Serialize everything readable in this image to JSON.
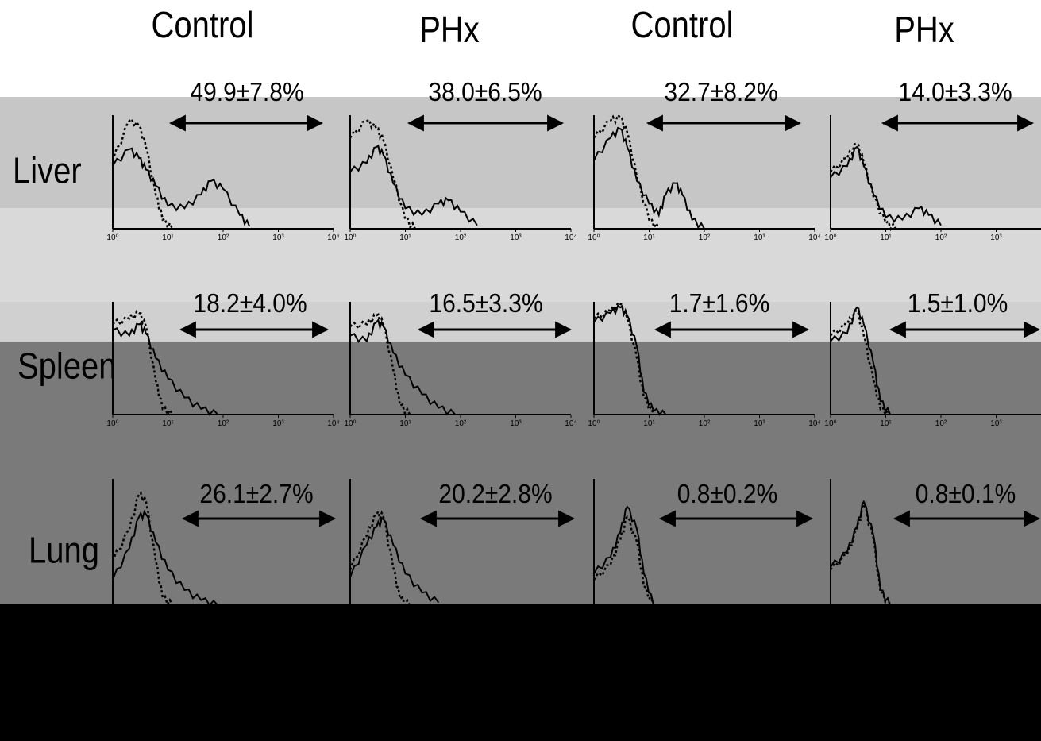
{
  "column_titles": [
    "Control",
    "PHx",
    "Control",
    "PHx"
  ],
  "row_labels": [
    "Liver",
    "Spleen",
    "Lung"
  ],
  "percentages": [
    [
      "49.9±7.8%",
      "38.0±6.5%",
      "32.7±8.2%",
      "14.0±3.3%"
    ],
    [
      "18.2±4.0%",
      "16.5±3.3%",
      "1.7±1.6%",
      "1.5±1.0%"
    ],
    [
      "26.1±2.7%",
      "20.2±2.8%",
      "0.8±0.2%",
      "0.8±0.1%"
    ]
  ],
  "axis_tick_labels": [
    "10⁰",
    "10¹",
    "10²",
    "10³",
    "10⁴"
  ],
  "colors": {
    "band_light": "#c6c6c6",
    "band_lighter": "#d9d9d9",
    "band_mid": "#7a7a7a",
    "band_dark": "#000000",
    "trace": "#000000"
  },
  "chart_data": {
    "type": "histogram_grid",
    "x_scale": "log",
    "xlim": [
      1,
      10000
    ],
    "x_ticks": [
      1,
      10,
      100,
      1000,
      10000
    ],
    "columns": [
      "Control",
      "PHx",
      "Control",
      "PHx"
    ],
    "rows": [
      "Liver",
      "Spleen",
      "Lung"
    ],
    "line_styles": [
      "solid",
      "dotted"
    ],
    "positive_fraction_percent": [
      [
        {
          "mean": 49.9,
          "sd": 7.8
        },
        {
          "mean": 38.0,
          "sd": 6.5
        },
        {
          "mean": 32.7,
          "sd": 8.2
        },
        {
          "mean": 14.0,
          "sd": 3.3
        }
      ],
      [
        {
          "mean": 18.2,
          "sd": 4.0
        },
        {
          "mean": 16.5,
          "sd": 3.3
        },
        {
          "mean": 1.7,
          "sd": 1.6
        },
        {
          "mean": 1.5,
          "sd": 1.0
        }
      ],
      [
        {
          "mean": 26.1,
          "sd": 2.7
        },
        {
          "mean": 20.2,
          "sd": 2.8
        },
        {
          "mean": 0.8,
          "sd": 0.2
        },
        {
          "mean": 0.8,
          "sd": 0.1
        }
      ]
    ],
    "histograms": [
      [
        {
          "solid": [
            [
              1,
              0.55
            ],
            [
              2,
              0.7
            ],
            [
              3,
              0.62
            ],
            [
              4,
              0.52
            ],
            [
              6,
              0.38
            ],
            [
              10,
              0.2
            ],
            [
              20,
              0.18
            ],
            [
              40,
              0.3
            ],
            [
              60,
              0.42
            ],
            [
              100,
              0.35
            ],
            [
              200,
              0.12
            ],
            [
              300,
              0.02
            ]
          ],
          "dotted": [
            [
              1,
              0.6
            ],
            [
              2,
              0.95
            ],
            [
              3,
              0.9
            ],
            [
              4,
              0.72
            ],
            [
              6,
              0.3
            ],
            [
              8,
              0.08
            ],
            [
              12,
              0.0
            ]
          ]
        },
        {
          "solid": [
            [
              1,
              0.5
            ],
            [
              2,
              0.58
            ],
            [
              3,
              0.72
            ],
            [
              4,
              0.65
            ],
            [
              6,
              0.4
            ],
            [
              10,
              0.18
            ],
            [
              20,
              0.12
            ],
            [
              40,
              0.22
            ],
            [
              60,
              0.25
            ],
            [
              100,
              0.15
            ],
            [
              200,
              0.03
            ]
          ],
          "dotted": [
            [
              1,
              0.8
            ],
            [
              2,
              0.95
            ],
            [
              3,
              0.88
            ],
            [
              4,
              0.78
            ],
            [
              6,
              0.45
            ],
            [
              10,
              0.08
            ],
            [
              15,
              0.0
            ]
          ]
        },
        {
          "solid": [
            [
              1,
              0.6
            ],
            [
              2,
              0.8
            ],
            [
              3,
              0.88
            ],
            [
              4,
              0.72
            ],
            [
              6,
              0.42
            ],
            [
              10,
              0.22
            ],
            [
              15,
              0.12
            ],
            [
              20,
              0.3
            ],
            [
              30,
              0.4
            ],
            [
              40,
              0.3
            ],
            [
              60,
              0.08
            ],
            [
              100,
              0.0
            ]
          ],
          "dotted": [
            [
              1,
              0.8
            ],
            [
              2,
              0.95
            ],
            [
              3,
              0.98
            ],
            [
              4,
              0.85
            ],
            [
              6,
              0.45
            ],
            [
              10,
              0.08
            ],
            [
              15,
              0.0
            ]
          ]
        },
        {
          "solid": [
            [
              1,
              0.45
            ],
            [
              2,
              0.55
            ],
            [
              3,
              0.72
            ],
            [
              4,
              0.55
            ],
            [
              6,
              0.3
            ],
            [
              10,
              0.1
            ],
            [
              20,
              0.08
            ],
            [
              40,
              0.18
            ],
            [
              60,
              0.12
            ],
            [
              100,
              0.03
            ]
          ],
          "dotted": [
            [
              1,
              0.5
            ],
            [
              2,
              0.62
            ],
            [
              3,
              0.75
            ],
            [
              4,
              0.58
            ],
            [
              6,
              0.28
            ],
            [
              10,
              0.05
            ],
            [
              15,
              0.0
            ]
          ]
        }
      ],
      [
        {
          "solid": [
            [
              1,
              0.75
            ],
            [
              2,
              0.7
            ],
            [
              3,
              0.8
            ],
            [
              4,
              0.72
            ],
            [
              6,
              0.5
            ],
            [
              10,
              0.32
            ],
            [
              20,
              0.15
            ],
            [
              40,
              0.05
            ],
            [
              80,
              0.0
            ]
          ],
          "dotted": [
            [
              1,
              0.8
            ],
            [
              2,
              0.85
            ],
            [
              3,
              0.9
            ],
            [
              4,
              0.78
            ],
            [
              6,
              0.3
            ],
            [
              8,
              0.05
            ],
            [
              12,
              0.0
            ]
          ]
        },
        {
          "solid": [
            [
              1,
              0.7
            ],
            [
              2,
              0.65
            ],
            [
              3,
              0.82
            ],
            [
              4,
              0.78
            ],
            [
              6,
              0.55
            ],
            [
              10,
              0.35
            ],
            [
              20,
              0.18
            ],
            [
              40,
              0.06
            ],
            [
              80,
              0.0
            ]
          ],
          "dotted": [
            [
              1,
              0.78
            ],
            [
              2,
              0.8
            ],
            [
              3,
              0.88
            ],
            [
              4,
              0.8
            ],
            [
              6,
              0.4
            ],
            [
              8,
              0.08
            ],
            [
              12,
              0.0
            ]
          ]
        },
        {
          "solid": [
            [
              1,
              0.82
            ],
            [
              2,
              0.9
            ],
            [
              3,
              0.95
            ],
            [
              4,
              0.88
            ],
            [
              6,
              0.6
            ],
            [
              8,
              0.2
            ],
            [
              12,
              0.03
            ],
            [
              20,
              0.0
            ]
          ],
          "dotted": [
            [
              1,
              0.85
            ],
            [
              2,
              0.92
            ],
            [
              3,
              0.98
            ],
            [
              4,
              0.85
            ],
            [
              6,
              0.5
            ],
            [
              8,
              0.15
            ],
            [
              12,
              0.0
            ]
          ]
        },
        {
          "solid": [
            [
              1,
              0.65
            ],
            [
              2,
              0.72
            ],
            [
              3,
              0.95
            ],
            [
              4,
              0.8
            ],
            [
              6,
              0.45
            ],
            [
              8,
              0.12
            ],
            [
              12,
              0.0
            ]
          ],
          "dotted": [
            [
              1,
              0.7
            ],
            [
              2,
              0.8
            ],
            [
              3,
              0.92
            ],
            [
              4,
              0.7
            ],
            [
              6,
              0.3
            ],
            [
              8,
              0.05
            ],
            [
              12,
              0.0
            ]
          ]
        }
      ],
      [
        {
          "solid": [
            [
              1,
              0.2
            ],
            [
              2,
              0.45
            ],
            [
              3,
              0.7
            ],
            [
              4,
              0.72
            ],
            [
              6,
              0.5
            ],
            [
              10,
              0.28
            ],
            [
              20,
              0.12
            ],
            [
              40,
              0.04
            ],
            [
              80,
              0.0
            ]
          ],
          "dotted": [
            [
              1,
              0.35
            ],
            [
              2,
              0.6
            ],
            [
              3,
              0.88
            ],
            [
              4,
              0.82
            ],
            [
              6,
              0.35
            ],
            [
              8,
              0.06
            ],
            [
              12,
              0.0
            ]
          ]
        },
        {
          "solid": [
            [
              1,
              0.22
            ],
            [
              2,
              0.48
            ],
            [
              3,
              0.62
            ],
            [
              4,
              0.68
            ],
            [
              6,
              0.48
            ],
            [
              10,
              0.25
            ],
            [
              20,
              0.1
            ],
            [
              40,
              0.02
            ]
          ],
          "dotted": [
            [
              1,
              0.28
            ],
            [
              2,
              0.55
            ],
            [
              3,
              0.72
            ],
            [
              4,
              0.7
            ],
            [
              6,
              0.3
            ],
            [
              8,
              0.05
            ],
            [
              12,
              0.0
            ]
          ]
        },
        {
          "solid": [
            [
              1,
              0.25
            ],
            [
              2,
              0.38
            ],
            [
              3,
              0.58
            ],
            [
              4,
              0.78
            ],
            [
              6,
              0.6
            ],
            [
              8,
              0.25
            ],
            [
              12,
              0.0
            ]
          ],
          "dotted": [
            [
              1,
              0.2
            ],
            [
              2,
              0.32
            ],
            [
              3,
              0.52
            ],
            [
              4,
              0.7
            ],
            [
              6,
              0.5
            ],
            [
              8,
              0.15
            ],
            [
              12,
              0.0
            ]
          ]
        },
        {
          "solid": [
            [
              1,
              0.3
            ],
            [
              2,
              0.42
            ],
            [
              3,
              0.62
            ],
            [
              4,
              0.82
            ],
            [
              6,
              0.55
            ],
            [
              8,
              0.12
            ],
            [
              12,
              0.0
            ]
          ],
          "dotted": [
            [
              1,
              0.28
            ],
            [
              2,
              0.4
            ],
            [
              3,
              0.6
            ],
            [
              4,
              0.8
            ],
            [
              6,
              0.52
            ],
            [
              8,
              0.1
            ],
            [
              12,
              0.0
            ]
          ]
        }
      ]
    ]
  }
}
